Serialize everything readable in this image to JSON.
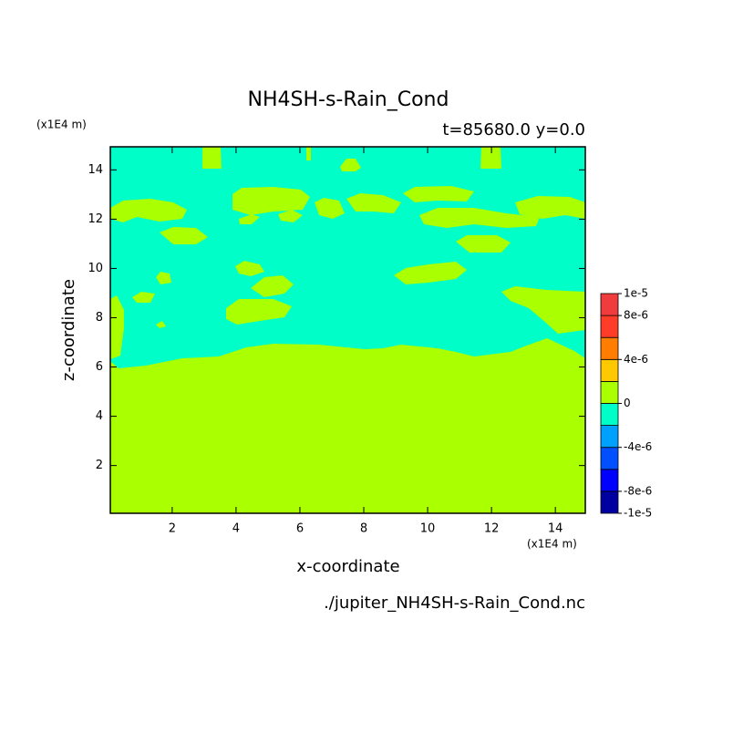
{
  "chart_data": {
    "type": "contour",
    "title": "NH4SH-s-Rain_Cond",
    "subtitle": "t=85680.0 y=0.0",
    "y_unit": "(x1E4 m)",
    "x_unit": "(x1E4 m)",
    "xlabel": "x-coordinate",
    "ylabel": "z-coordinate",
    "source": "./jupiter_NH4SH-s-Rain_Cond.nc",
    "xlim": [
      0.0625,
      14.9375
    ],
    "ylim": [
      0.0625,
      14.9375
    ],
    "xticks": [
      2,
      4,
      6,
      8,
      10,
      12,
      14
    ],
    "yticks": [
      2,
      4,
      6,
      8,
      10,
      12,
      14
    ],
    "colorbar": {
      "lim": [
        -1e-05,
        1e-05
      ],
      "levels": [
        -1e-05,
        -8e-06,
        -6e-06,
        -4e-06,
        -2e-06,
        0,
        2e-06,
        4e-06,
        6e-06,
        8e-06,
        1e-05
      ],
      "colors": [
        "#0000a0",
        "#0000ff",
        "#0050ff",
        "#00a0ff",
        "#00ffc8",
        "#aaff00",
        "#ffc800",
        "#ff7d00",
        "#ff3c28",
        "#f03c3c"
      ],
      "ticks": [
        {
          "value": 1e-05,
          "label": "1e-5"
        },
        {
          "value": 8e-06,
          "label": "8e-6"
        },
        {
          "value": 4e-06,
          "label": "4e-6"
        },
        0,
        {
          "value": -4e-06,
          "label": "-4e-6"
        },
        {
          "value": -8e-06,
          "label": "-8e-6"
        },
        {
          "value": -1e-05,
          "label": "-1e-5"
        }
      ]
    }
  }
}
